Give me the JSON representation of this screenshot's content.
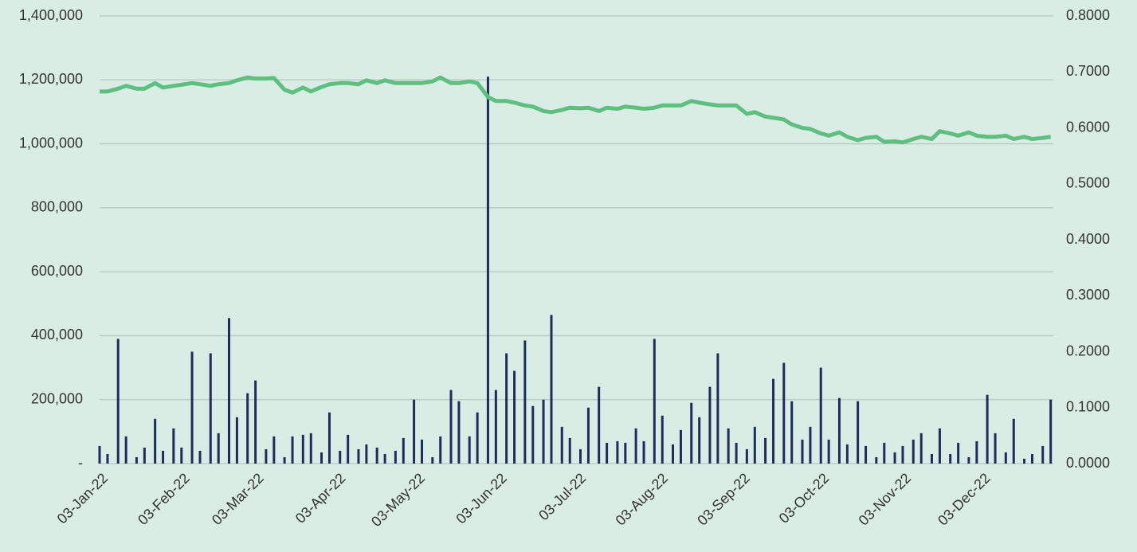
{
  "chart_data": {
    "type": "bar-line",
    "x": [
      "2022-01-03",
      "2022-01-06",
      "2022-01-10",
      "2022-01-13",
      "2022-01-17",
      "2022-01-20",
      "2022-01-24",
      "2022-01-27",
      "2022-01-31",
      "2022-02-03",
      "2022-02-07",
      "2022-02-10",
      "2022-02-14",
      "2022-02-17",
      "2022-02-21",
      "2022-02-24",
      "2022-02-28",
      "2022-03-03",
      "2022-03-07",
      "2022-03-10",
      "2022-03-14",
      "2022-03-17",
      "2022-03-21",
      "2022-03-24",
      "2022-03-28",
      "2022-03-31",
      "2022-04-04",
      "2022-04-07",
      "2022-04-11",
      "2022-04-14",
      "2022-04-18",
      "2022-04-21",
      "2022-04-25",
      "2022-04-28",
      "2022-05-02",
      "2022-05-05",
      "2022-05-09",
      "2022-05-12",
      "2022-05-16",
      "2022-05-19",
      "2022-05-23",
      "2022-05-26",
      "2022-05-30",
      "2022-06-02",
      "2022-06-06",
      "2022-06-09",
      "2022-06-13",
      "2022-06-16",
      "2022-06-20",
      "2022-06-23",
      "2022-06-27",
      "2022-06-30",
      "2022-07-04",
      "2022-07-07",
      "2022-07-11",
      "2022-07-14",
      "2022-07-18",
      "2022-07-21",
      "2022-07-25",
      "2022-07-28",
      "2022-08-01",
      "2022-08-04",
      "2022-08-08",
      "2022-08-11",
      "2022-08-15",
      "2022-08-18",
      "2022-08-22",
      "2022-08-25",
      "2022-08-29",
      "2022-09-01",
      "2022-09-05",
      "2022-09-08",
      "2022-09-12",
      "2022-09-15",
      "2022-09-19",
      "2022-09-22",
      "2022-09-26",
      "2022-09-29",
      "2022-10-03",
      "2022-10-06",
      "2022-10-10",
      "2022-10-13",
      "2022-10-17",
      "2022-10-20",
      "2022-10-24",
      "2022-10-27",
      "2022-10-31",
      "2022-11-03",
      "2022-11-07",
      "2022-11-10",
      "2022-11-14",
      "2022-11-17",
      "2022-11-21",
      "2022-11-24",
      "2022-11-28",
      "2022-12-01",
      "2022-12-05",
      "2022-12-08",
      "2022-12-12",
      "2022-12-15",
      "2022-12-19",
      "2022-12-22",
      "2022-12-26",
      "2022-12-29"
    ],
    "series": [
      {
        "type": "bar",
        "color": "#1f2c5c",
        "values": [
          55000,
          30000,
          390000,
          85000,
          20000,
          50000,
          140000,
          40000,
          110000,
          50000,
          350000,
          40000,
          345000,
          95000,
          455000,
          145000,
          220000,
          260000,
          45000,
          85000,
          20000,
          85000,
          90000,
          95000,
          35000,
          160000,
          40000,
          90000,
          45000,
          60000,
          50000,
          30000,
          40000,
          80000,
          200000,
          75000,
          20000,
          85000,
          230000,
          195000,
          85000,
          160000,
          1210000,
          230000,
          345000,
          290000,
          385000,
          180000,
          200000,
          465000,
          115000,
          80000,
          45000,
          175000,
          240000,
          65000,
          70000,
          65000,
          110000,
          70000,
          390000,
          150000,
          60000,
          105000,
          190000,
          145000,
          240000,
          345000,
          110000,
          65000,
          45000,
          115000,
          80000,
          265000,
          315000,
          195000,
          75000,
          115000,
          300000,
          75000,
          205000,
          60000,
          195000,
          55000,
          20000,
          65000,
          35000,
          55000,
          75000,
          95000,
          30000,
          110000,
          30000,
          65000,
          20000,
          70000,
          215000,
          95000,
          35000,
          140000,
          15000,
          30000,
          55000,
          200000
        ]
      },
      {
        "type": "line",
        "axis": "y2",
        "color": "#5ec07f",
        "values": [
          0.665,
          0.665,
          0.67,
          0.675,
          0.67,
          0.67,
          0.68,
          0.672,
          0.675,
          0.677,
          0.68,
          0.678,
          0.675,
          0.678,
          0.68,
          0.685,
          0.69,
          0.688,
          0.688,
          0.689,
          0.668,
          0.663,
          0.672,
          0.665,
          0.673,
          0.678,
          0.68,
          0.68,
          0.678,
          0.685,
          0.68,
          0.685,
          0.68,
          0.68,
          0.68,
          0.68,
          0.683,
          0.69,
          0.68,
          0.68,
          0.683,
          0.68,
          0.655,
          0.648,
          0.648,
          0.645,
          0.64,
          0.638,
          0.63,
          0.628,
          0.632,
          0.636,
          0.635,
          0.636,
          0.63,
          0.636,
          0.634,
          0.638,
          0.636,
          0.634,
          0.636,
          0.64,
          0.64,
          0.64,
          0.648,
          0.645,
          0.642,
          0.64,
          0.64,
          0.64,
          0.625,
          0.628,
          0.62,
          0.618,
          0.615,
          0.606,
          0.6,
          0.598,
          0.59,
          0.586,
          0.592,
          0.584,
          0.578,
          0.582,
          0.584,
          0.575,
          0.576,
          0.574,
          0.58,
          0.584,
          0.58,
          0.594,
          0.59,
          0.586,
          0.592,
          0.586,
          0.584,
          0.584,
          0.586,
          0.58,
          0.584,
          0.58,
          0.582,
          0.584
        ]
      }
    ],
    "xlim": [
      "2022-01-03",
      "2022-12-30"
    ],
    "xticks": [
      {
        "value": "2022-01-03",
        "label": "03-Jan-22"
      },
      {
        "value": "2022-02-03",
        "label": "03-Feb-22"
      },
      {
        "value": "2022-03-03",
        "label": "03-Mar-22"
      },
      {
        "value": "2022-04-03",
        "label": "03-Apr-22"
      },
      {
        "value": "2022-05-03",
        "label": "03-May-22"
      },
      {
        "value": "2022-06-03",
        "label": "03-Jun-22"
      },
      {
        "value": "2022-07-03",
        "label": "03-Jul-22"
      },
      {
        "value": "2022-08-03",
        "label": "03-Aug-22"
      },
      {
        "value": "2022-09-03",
        "label": "03-Sep-22"
      },
      {
        "value": "2022-10-03",
        "label": "03-Oct-22"
      },
      {
        "value": "2022-11-03",
        "label": "03-Nov-22"
      },
      {
        "value": "2022-12-03",
        "label": "03-Dec-22"
      }
    ],
    "ylim": [
      0,
      1400000
    ],
    "yticks": [
      {
        "value": 0,
        "label": "-"
      },
      {
        "value": 200000,
        "label": "200,000"
      },
      {
        "value": 400000,
        "label": "400,000"
      },
      {
        "value": 600000,
        "label": "600,000"
      },
      {
        "value": 800000,
        "label": "800,000"
      },
      {
        "value": 1000000,
        "label": "1,000,000"
      },
      {
        "value": 1200000,
        "label": "1,200,000"
      },
      {
        "value": 1400000,
        "label": "1,400,000"
      }
    ],
    "y2lim": [
      0,
      0.8
    ],
    "y2ticks": [
      {
        "value": 0,
        "label": "0.0000"
      },
      {
        "value": 0.1,
        "label": "0.1000"
      },
      {
        "value": 0.2,
        "label": "0.2000"
      },
      {
        "value": 0.3,
        "label": "0.3000"
      },
      {
        "value": 0.4,
        "label": "0.4000"
      },
      {
        "value": 0.5,
        "label": "0.5000"
      },
      {
        "value": 0.6,
        "label": "0.6000"
      },
      {
        "value": 0.7,
        "label": "0.7000"
      },
      {
        "value": 0.8,
        "label": "0.8000"
      }
    ],
    "grid": true
  }
}
